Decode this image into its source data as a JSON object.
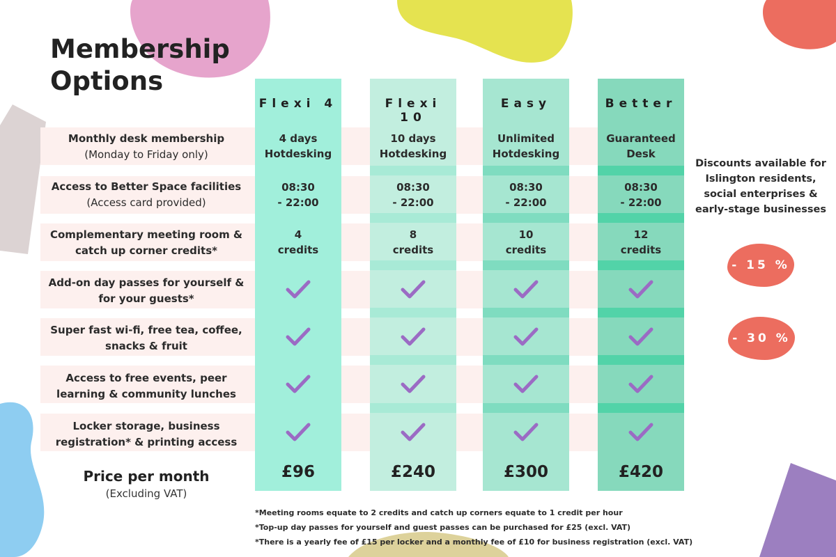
{
  "title": {
    "line1": "Membership",
    "line2": "Options"
  },
  "rows": [
    {
      "label": "Monthly desk membership",
      "sub": "(Monday to Friday only)"
    },
    {
      "label": "Access to Better Space facilities",
      "sub": "(Access card provided)"
    },
    {
      "label": "Complementary meeting room &",
      "sub": "catch up corner credits*"
    },
    {
      "label": "Add-on day passes for yourself &",
      "sub": "for your guests*"
    },
    {
      "label": "Super fast wi-fi, free tea, coffee,",
      "sub": "snacks & fruit"
    },
    {
      "label": "Access to free events, peer",
      "sub": "learning & community lunches"
    },
    {
      "label": "Locker storage, business",
      "sub": "registration* & printing access"
    }
  ],
  "price_label": {
    "main": "Price per month",
    "sub": "(Excluding VAT)"
  },
  "plans": [
    {
      "name": "Flexi 4",
      "desk": [
        "4 days",
        "Hotdesking"
      ],
      "hours": [
        "08:30",
        "- 22:00"
      ],
      "credits": [
        "4",
        "credits"
      ],
      "price": "£96",
      "color": "#a1efdb",
      "strip": "#a1efdb"
    },
    {
      "name": "Flexi 10",
      "desk": [
        "10 days",
        "Hotdesking"
      ],
      "hours": [
        "08:30",
        "- 22:00"
      ],
      "credits": [
        "8",
        "credits"
      ],
      "price": "£240",
      "color": "#c2eedf",
      "strip": "#a8ead6"
    },
    {
      "name": "Easy",
      "desk": [
        "Unlimited",
        "Hotdesking"
      ],
      "hours": [
        "08:30",
        "- 22:00"
      ],
      "credits": [
        "10",
        "credits"
      ],
      "price": "£300",
      "color": "#a6e6d1",
      "strip": "#7fdcc0"
    },
    {
      "name": "Better",
      "desk": [
        "Guaranteed",
        "Desk"
      ],
      "hours": [
        "08:30",
        "- 22:00"
      ],
      "credits": [
        "12",
        "credits"
      ],
      "price": "£420",
      "color": "#86d9bc",
      "strip": "#52d3a8"
    }
  ],
  "discounts": {
    "text": [
      "Discounts available for",
      "Islington residents,",
      "social enterprises &",
      "early-stage businesses"
    ],
    "badges": [
      "- 15 %",
      "- 30 %"
    ]
  },
  "footnotes": [
    "*Meeting rooms equate to 2 credits and catch up corners equate to 1 credit per hour",
    "*Top-up day passes for yourself and guest passes can be purchased for £25 (excl. VAT)",
    "*There is a yearly fee of £15 per locker and a monthly fee of £10 for business registration (excl. VAT)"
  ],
  "colors": {
    "check": "#9b6bc4",
    "badge": "#ec6d5f",
    "band": "#fdf0ee"
  }
}
